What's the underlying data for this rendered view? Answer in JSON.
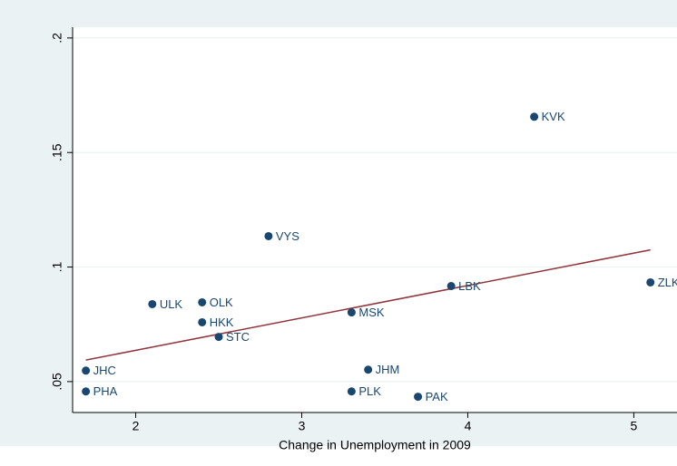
{
  "chart_data": {
    "type": "scatter",
    "x_label": "Change in Unemployment in 2009",
    "x": [
      4.4,
      2.8,
      5.1,
      3.9,
      2.1,
      2.4,
      3.3,
      2.4,
      2.5,
      1.7,
      3.4,
      1.7,
      3.3,
      3.7
    ],
    "values": [
      0.1656,
      0.1135,
      0.0933,
      0.0917,
      0.0838,
      0.0846,
      0.0802,
      0.0759,
      0.0695,
      0.0548,
      0.0552,
      0.0457,
      0.0457,
      0.0434
    ],
    "labels": [
      "KVK",
      "VYS",
      "ZLK",
      "LBK",
      "ULK",
      "OLK",
      "MSK",
      "HKK",
      "STC",
      "JHC",
      "JHM",
      "PHA",
      "PLK",
      "PAK"
    ],
    "color": "#1a476f",
    "fit": {
      "x": [
        1.7,
        5.1
      ],
      "values": [
        0.0594,
        0.1075
      ],
      "color": "#90353b"
    },
    "xlim": [
      1.62,
      5.26
    ],
    "ylim": [
      0.0365,
      0.2047
    ],
    "xticks": [
      2,
      3,
      4,
      5
    ],
    "yticks": [
      {
        "value": 0.05,
        "label": ".05"
      },
      {
        "value": 0.1,
        "label": ".1"
      },
      {
        "value": 0.15,
        "label": ".15"
      },
      {
        "value": 0.2,
        "label": ".2"
      }
    ],
    "grid": true
  }
}
